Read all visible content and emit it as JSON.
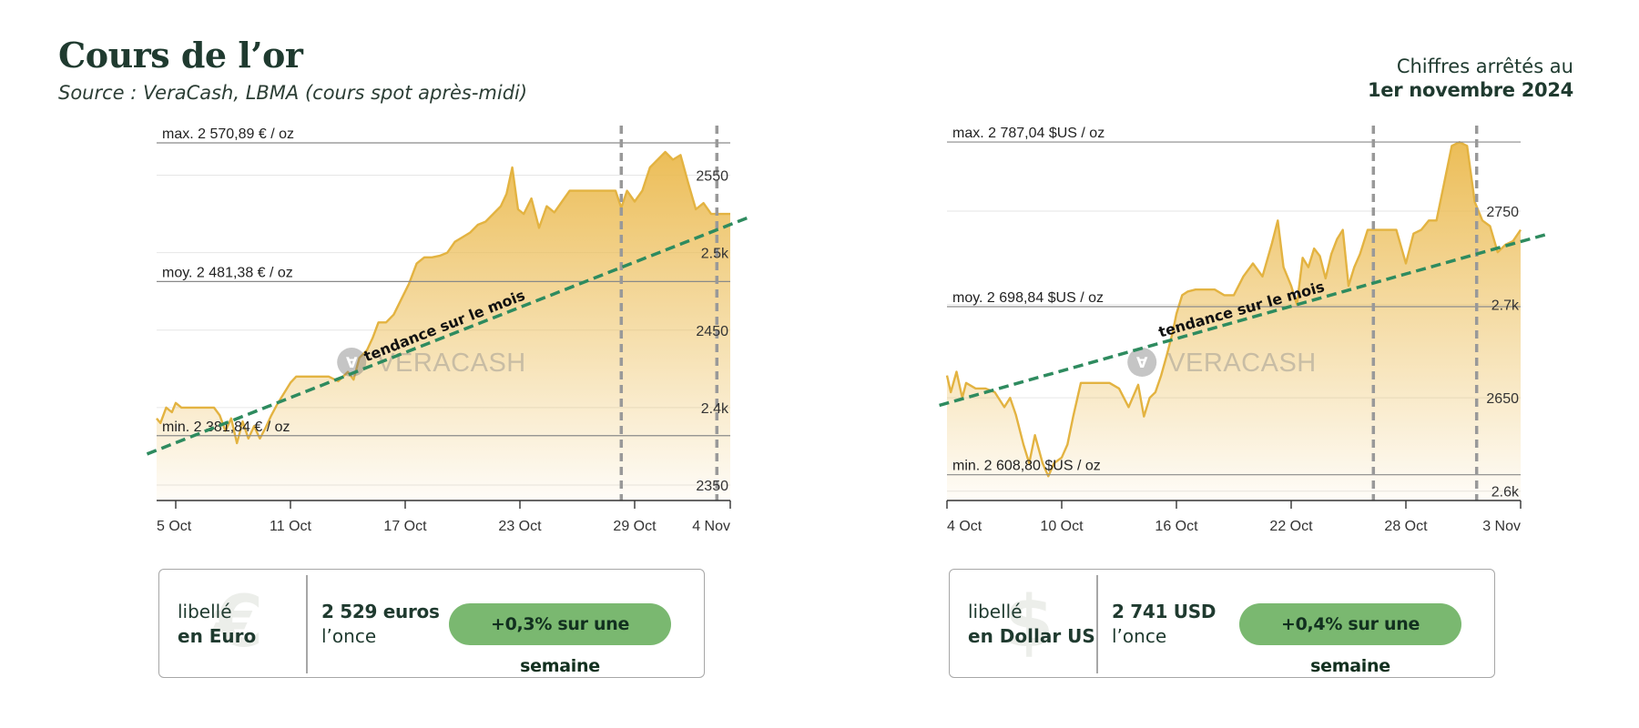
{
  "header": {
    "title": "Cours de l’or",
    "subtitle": "Source : VeraCash, LBMA (cours spot après-midi)",
    "date_prefix": "Chiffres arrêtés au",
    "date_value": "1er novembre 2024"
  },
  "watermark": "VERACASH",
  "chart_data": [
    {
      "type": "area",
      "currency": "EUR",
      "ylim": [
        2340,
        2575
      ],
      "xlim": [
        0,
        30
      ],
      "x_ticks": [
        {
          "x": 1,
          "label": "5 Oct"
        },
        {
          "x": 7,
          "label": "11 Oct"
        },
        {
          "x": 13,
          "label": "17 Oct"
        },
        {
          "x": 19,
          "label": "23 Oct"
        },
        {
          "x": 25,
          "label": "29 Oct"
        },
        {
          "x": 30,
          "label": "4 Nov"
        }
      ],
      "y_ticks": [
        {
          "y": 2350,
          "label": "2350"
        },
        {
          "y": 2400,
          "label": "2.4k"
        },
        {
          "y": 2450,
          "label": "2450"
        },
        {
          "y": 2500,
          "label": "2.5k"
        },
        {
          "y": 2550,
          "label": "2550"
        }
      ],
      "reference_lines": [
        {
          "y": 2570.89,
          "label": "max. 2 570,89 € / oz"
        },
        {
          "y": 2481.38,
          "label": "moy. 2 481,38 € / oz"
        },
        {
          "y": 2381.84,
          "label": "min. 2 381,84 € / oz"
        }
      ],
      "vertical_markers": [
        24.3,
        29.3
      ],
      "trend": {
        "x": [
          -0.5,
          31
        ],
        "y": [
          2370,
          2523
        ],
        "label": "tendance sur le mois"
      },
      "x": [
        0,
        0.2,
        0.5,
        0.8,
        1,
        1.3,
        1.6,
        2,
        2.5,
        3,
        3.3,
        3.6,
        3.9,
        4.2,
        4.5,
        4.8,
        5.1,
        5.4,
        5.7,
        6,
        6.3,
        6.6,
        7,
        7.3,
        7.6,
        8,
        8.5,
        9,
        9.5,
        10,
        10.3,
        10.6,
        11,
        11.3,
        11.6,
        12,
        12.4,
        12.8,
        13.2,
        13.6,
        14,
        14.4,
        14.8,
        15.2,
        15.6,
        16,
        16.4,
        16.8,
        17.2,
        17.6,
        18,
        18.3,
        18.6,
        18.9,
        19.2,
        19.6,
        20,
        20.4,
        20.8,
        21.2,
        21.6,
        22,
        22.5,
        23,
        23.5,
        24,
        24.3,
        24.6,
        25,
        25.4,
        25.8,
        26.2,
        26.6,
        27,
        27.4,
        27.8,
        28.2,
        28.6,
        29,
        29.4,
        29.8,
        30
      ],
      "values": [
        2393,
        2390,
        2400,
        2397,
        2403,
        2400,
        2400,
        2400,
        2400,
        2400,
        2395,
        2385,
        2393,
        2377,
        2391,
        2380,
        2388,
        2380,
        2387,
        2395,
        2402,
        2408,
        2416,
        2420,
        2420,
        2420,
        2420,
        2420,
        2417,
        2423,
        2418,
        2432,
        2437,
        2445,
        2455,
        2455,
        2460,
        2470,
        2480,
        2493,
        2497,
        2497,
        2498,
        2500,
        2507,
        2510,
        2513,
        2518,
        2520,
        2525,
        2530,
        2538,
        2555,
        2528,
        2525,
        2535,
        2516,
        2530,
        2526,
        2533,
        2540,
        2540,
        2540,
        2540,
        2540,
        2540,
        2529,
        2540,
        2533,
        2540,
        2555,
        2560,
        2565,
        2560,
        2563,
        2545,
        2528,
        2532,
        2525,
        2525,
        2525,
        2525
      ]
    },
    {
      "type": "area",
      "currency": "USD",
      "ylim": [
        2595,
        2790
      ],
      "xlim": [
        0,
        30
      ],
      "x_ticks": [
        {
          "x": 0,
          "label": "4 Oct"
        },
        {
          "x": 6,
          "label": "10 Oct"
        },
        {
          "x": 12,
          "label": "16 Oct"
        },
        {
          "x": 18,
          "label": "22 Oct"
        },
        {
          "x": 24,
          "label": "28 Oct"
        },
        {
          "x": 30,
          "label": "3 Nov"
        }
      ],
      "y_ticks": [
        {
          "y": 2600,
          "label": "2.6k"
        },
        {
          "y": 2650,
          "label": "2650"
        },
        {
          "y": 2700,
          "label": "2.7k"
        },
        {
          "y": 2750,
          "label": "2750"
        }
      ],
      "reference_lines": [
        {
          "y": 2787.04,
          "label": "max. 2 787,04 $US / oz"
        },
        {
          "y": 2698.84,
          "label": "moy. 2 698,84 $US / oz"
        },
        {
          "y": 2608.8,
          "label": "min. 2 608,80 $US / oz"
        }
      ],
      "vertical_markers": [
        22.3,
        27.7
      ],
      "trend": {
        "x": [
          -0.4,
          31.5
        ],
        "y": [
          2646,
          2738
        ],
        "label": "tendance sur le mois"
      },
      "x": [
        0,
        0.2,
        0.5,
        0.8,
        1,
        1.5,
        2,
        2.5,
        3,
        3.3,
        3.6,
        4,
        4.3,
        4.6,
        5,
        5.3,
        5.6,
        6,
        6.3,
        6.6,
        7,
        7.3,
        7.6,
        8,
        8.5,
        9,
        9.5,
        10,
        10.3,
        10.6,
        10.9,
        11.2,
        11.5,
        11.8,
        12,
        12.3,
        12.6,
        13,
        13.5,
        14,
        14.5,
        15,
        15.5,
        16,
        16.5,
        17,
        17.3,
        17.6,
        18,
        18.3,
        18.6,
        18.9,
        19.2,
        19.5,
        19.8,
        20.1,
        20.4,
        20.7,
        21,
        21.3,
        21.6,
        22,
        22.5,
        23,
        23.5,
        24,
        24.4,
        24.8,
        25.2,
        25.6,
        26,
        26.4,
        26.8,
        27.2,
        27.6,
        28,
        28.4,
        28.8,
        29.2,
        29.6,
        30
      ],
      "values": [
        2662,
        2653,
        2664,
        2650,
        2658,
        2655,
        2655,
        2653,
        2645,
        2650,
        2641,
        2625,
        2615,
        2630,
        2615,
        2608,
        2615,
        2618,
        2625,
        2640,
        2658,
        2658,
        2658,
        2658,
        2658,
        2655,
        2645,
        2657,
        2640,
        2650,
        2653,
        2662,
        2673,
        2685,
        2695,
        2705,
        2707,
        2708,
        2708,
        2708,
        2705,
        2705,
        2715,
        2722,
        2715,
        2733,
        2745,
        2720,
        2710,
        2700,
        2725,
        2720,
        2730,
        2726,
        2714,
        2727,
        2735,
        2740,
        2710,
        2720,
        2727,
        2740,
        2740,
        2740,
        2740,
        2722,
        2738,
        2740,
        2745,
        2745,
        2765,
        2785,
        2787,
        2785,
        2755,
        2745,
        2742,
        2728,
        2732,
        2734,
        2740
      ]
    }
  ],
  "cards": [
    {
      "ghost_symbol": "€",
      "label_line1": "libellé",
      "label_line2": "en Euro",
      "price": "2 529 euros",
      "unit": "l’once",
      "change": "+0,3% sur une semaine"
    },
    {
      "ghost_symbol": "$",
      "label_line1": "libellé",
      "label_line2": "en Dollar US",
      "price": "2 741 USD",
      "unit": "l’once",
      "change": "+0,4% sur une semaine"
    }
  ],
  "colors": {
    "gold_line": "#e3b341",
    "gold_fill_top": "#ebba4f",
    "trend_green": "#2e8b5f",
    "badge_green": "#7ab870",
    "marker_gray": "#999999",
    "text_dark": "#1f3a2f"
  }
}
